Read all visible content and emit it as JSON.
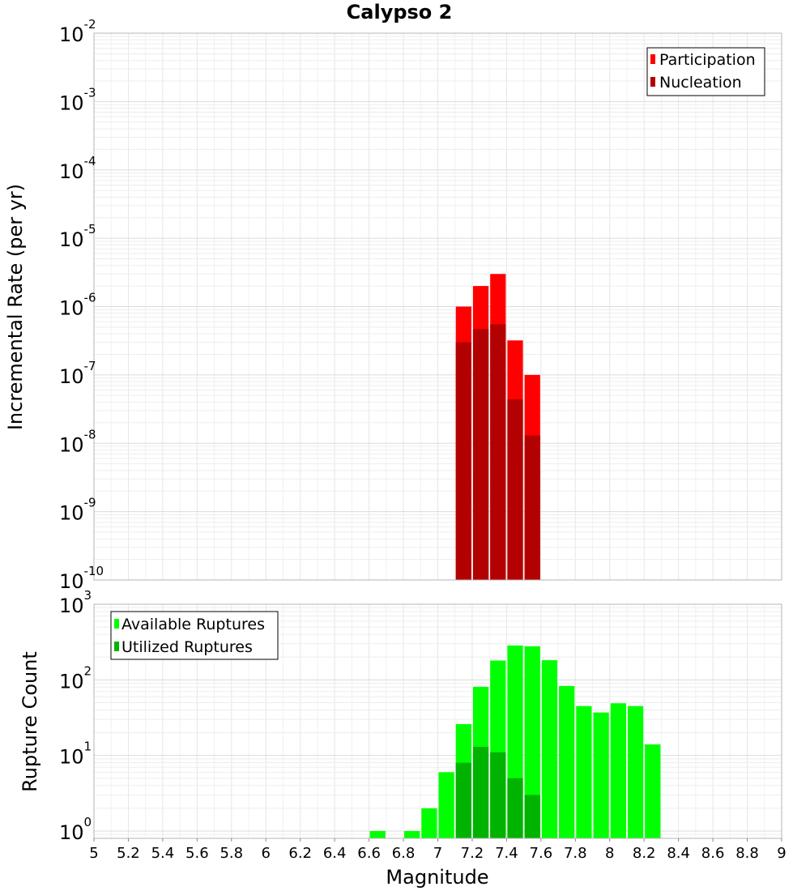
{
  "chart_data": [
    {
      "type": "bar",
      "title": "Calypso 2",
      "xlabel": "",
      "ylabel": "Incremental Rate (per yr)",
      "yscale": "log",
      "ylim": [
        1e-10,
        0.01
      ],
      "xlim": [
        5,
        9
      ],
      "grid": true,
      "legend_position": "top-right",
      "bin_width": 0.1,
      "y_ticks": [
        {
          "base": "10",
          "exp": "-2"
        },
        {
          "base": "10",
          "exp": "-3"
        },
        {
          "base": "10",
          "exp": "-4"
        },
        {
          "base": "10",
          "exp": "-5"
        },
        {
          "base": "10",
          "exp": "-6"
        },
        {
          "base": "10",
          "exp": "-7"
        },
        {
          "base": "10",
          "exp": "-8"
        },
        {
          "base": "10",
          "exp": "-9"
        },
        {
          "base": "10",
          "exp": "-10"
        }
      ],
      "series": [
        {
          "name": "Participation",
          "color": "#ff0000",
          "points": [
            {
              "x": 7.15,
              "y": 1e-06
            },
            {
              "x": 7.25,
              "y": 2e-06
            },
            {
              "x": 7.35,
              "y": 3e-06
            },
            {
              "x": 7.45,
              "y": 3.2e-07
            },
            {
              "x": 7.55,
              "y": 1e-07
            }
          ]
        },
        {
          "name": "Nucleation",
          "color": "#b30000",
          "points": [
            {
              "x": 7.15,
              "y": 3e-07
            },
            {
              "x": 7.25,
              "y": 4.7e-07
            },
            {
              "x": 7.35,
              "y": 5.5e-07
            },
            {
              "x": 7.45,
              "y": 4.4e-08
            },
            {
              "x": 7.55,
              "y": 1.3e-08
            }
          ]
        }
      ]
    },
    {
      "type": "bar",
      "title": "",
      "xlabel": "Magnitude",
      "ylabel": "Rupture Count",
      "yscale": "log",
      "ylim": [
        0.8,
        1000
      ],
      "xlim": [
        5,
        9
      ],
      "grid": true,
      "legend_position": "top-left",
      "bin_width": 0.1,
      "x_tick_labels": [
        "5",
        "5.2",
        "5.4",
        "5.6",
        "5.8",
        "6",
        "6.2",
        "6.4",
        "6.6",
        "6.8",
        "7",
        "7.2",
        "7.4",
        "7.6",
        "7.8",
        "8",
        "8.2",
        "8.4",
        "8.6",
        "8.8",
        "9"
      ],
      "y_ticks": [
        {
          "base": "10",
          "exp": "3"
        },
        {
          "base": "10",
          "exp": "2"
        },
        {
          "base": "10",
          "exp": "1"
        },
        {
          "base": "10",
          "exp": "0"
        }
      ],
      "series": [
        {
          "name": "Available Ruptures",
          "color": "#00ff00",
          "points": [
            {
              "x": 6.65,
              "y": 1
            },
            {
              "x": 6.85,
              "y": 1
            },
            {
              "x": 6.95,
              "y": 2
            },
            {
              "x": 7.05,
              "y": 6
            },
            {
              "x": 7.15,
              "y": 26
            },
            {
              "x": 7.25,
              "y": 81
            },
            {
              "x": 7.35,
              "y": 180
            },
            {
              "x": 7.45,
              "y": 285
            },
            {
              "x": 7.55,
              "y": 278
            },
            {
              "x": 7.65,
              "y": 182
            },
            {
              "x": 7.75,
              "y": 83
            },
            {
              "x": 7.85,
              "y": 45
            },
            {
              "x": 7.95,
              "y": 37
            },
            {
              "x": 8.05,
              "y": 49
            },
            {
              "x": 8.15,
              "y": 45
            },
            {
              "x": 8.25,
              "y": 14
            }
          ]
        },
        {
          "name": "Utilized Ruptures",
          "color": "#00b300",
          "points": [
            {
              "x": 7.15,
              "y": 8
            },
            {
              "x": 7.25,
              "y": 13
            },
            {
              "x": 7.35,
              "y": 11
            },
            {
              "x": 7.45,
              "y": 5
            },
            {
              "x": 7.55,
              "y": 3
            }
          ]
        }
      ]
    }
  ]
}
